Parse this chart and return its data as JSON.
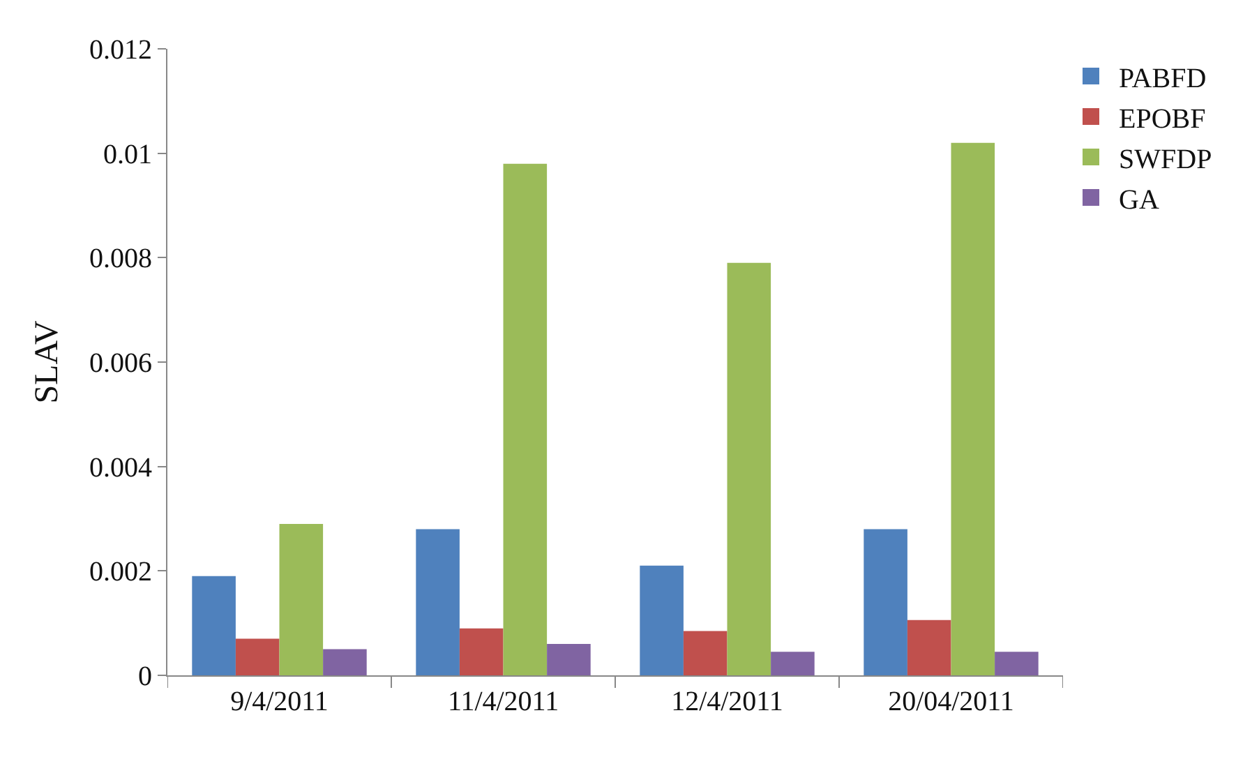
{
  "chart_data": {
    "type": "bar",
    "ylabel": "SLAV",
    "categories": [
      "9/4/2011",
      "11/4/2011",
      "12/4/2011",
      "20/04/2011"
    ],
    "series": [
      {
        "name": "PABFD",
        "color": "#4f81bd",
        "values": [
          0.0019,
          0.0028,
          0.0021,
          0.0028
        ]
      },
      {
        "name": "EPOBF",
        "color": "#c0504d",
        "values": [
          0.0007,
          0.0009,
          0.00085,
          0.00106
        ]
      },
      {
        "name": "SWFDP",
        "color": "#9bbb59",
        "values": [
          0.0029,
          0.0098,
          0.0079,
          0.0102
        ]
      },
      {
        "name": "GA",
        "color": "#8064a2",
        "values": [
          0.0005,
          0.0006,
          0.00045,
          0.00045
        ]
      }
    ],
    "ylim": [
      0,
      0.012
    ],
    "yticks": [
      0,
      0.002,
      0.004,
      0.006,
      0.008,
      0.01,
      0.012
    ],
    "grid": false,
    "legend": "top right"
  }
}
